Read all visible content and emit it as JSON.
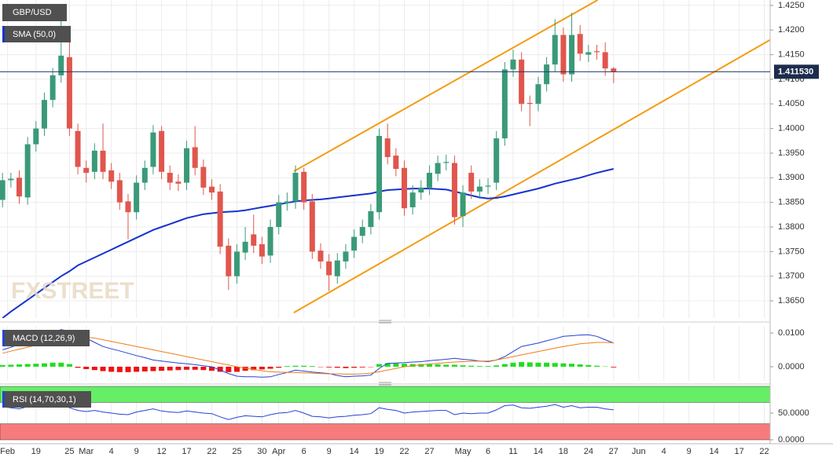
{
  "chart_data": [
    {
      "type": "candlestick",
      "title": "GBP/USD",
      "watermark": "FXSTREET",
      "up_color": "#3a9a78",
      "down_color": "#e0564d",
      "x": [
        0,
        1,
        2,
        3,
        4,
        5,
        6,
        7,
        8,
        9,
        10,
        11,
        12,
        13,
        14,
        15,
        16,
        17,
        18,
        19,
        20,
        21,
        22,
        23,
        24,
        25,
        26,
        27,
        28,
        29,
        30,
        31,
        32,
        33,
        34,
        35,
        36,
        37,
        38,
        39,
        40,
        41,
        42,
        43,
        44,
        45,
        46,
        47,
        48,
        49,
        50,
        51,
        52,
        53,
        54,
        55,
        56,
        57,
        58,
        59,
        60,
        61,
        62,
        63,
        64,
        65,
        66,
        67,
        68,
        69,
        70,
        71,
        72,
        73
      ],
      "open": [
        1.3855,
        1.3895,
        1.39,
        1.386,
        1.3968,
        1.4,
        1.4058,
        1.4108,
        1.4145,
        1.3995,
        1.392,
        1.3912,
        1.3955,
        1.3915,
        1.3895,
        1.3852,
        1.383,
        1.389,
        1.3922,
        1.3995,
        1.391,
        1.3892,
        1.389,
        1.3962,
        1.3922,
        1.3882,
        1.3872,
        1.3762,
        1.37,
        1.3748,
        1.3785,
        1.3765,
        1.3742,
        1.38,
        1.3848,
        1.3852,
        1.3912,
        1.3852,
        1.3752,
        1.373,
        1.37,
        1.373,
        1.3752,
        1.3782,
        1.38,
        1.383,
        1.398,
        1.3945,
        1.392,
        1.384,
        1.387,
        1.388,
        1.3908,
        1.393,
        1.393,
        1.3822,
        1.391,
        1.3872,
        1.3882,
        1.389,
        1.398,
        1.412,
        1.414,
        1.4052,
        1.405,
        1.409,
        1.413,
        1.419,
        1.411,
        1.4192,
        1.415,
        1.4157,
        1.4155,
        1.4122
      ],
      "high": [
        1.391,
        1.391,
        1.3915,
        1.3983,
        1.4015,
        1.4073,
        1.4123,
        1.424,
        1.418,
        1.401,
        1.3935,
        1.397,
        1.401,
        1.393,
        1.391,
        1.3867,
        1.3905,
        1.3935,
        1.4007,
        1.4005,
        1.3925,
        1.3907,
        1.3975,
        1.4005,
        1.3937,
        1.3897,
        1.3887,
        1.3777,
        1.3765,
        1.38,
        1.3825,
        1.378,
        1.3815,
        1.3865,
        1.387,
        1.3925,
        1.392,
        1.3867,
        1.3767,
        1.3745,
        1.3747,
        1.3765,
        1.3795,
        1.3815,
        1.3847,
        1.4,
        1.401,
        1.396,
        1.3935,
        1.3885,
        1.3895,
        1.3925,
        1.3945,
        1.3947,
        1.3945,
        1.3885,
        1.3925,
        1.3897,
        1.3899,
        1.3995,
        1.4135,
        1.416,
        1.4155,
        1.4067,
        1.4105,
        1.4145,
        1.4222,
        1.4205,
        1.4235,
        1.421,
        1.417,
        1.417,
        1.4175,
        1.4125
      ],
      "low": [
        1.384,
        1.388,
        1.3847,
        1.3845,
        1.3953,
        1.3985,
        1.4043,
        1.4093,
        1.3985,
        1.3907,
        1.389,
        1.3897,
        1.3897,
        1.3877,
        1.3835,
        1.3775,
        1.3815,
        1.3875,
        1.3907,
        1.3897,
        1.3875,
        1.3873,
        1.3875,
        1.3905,
        1.3865,
        1.3855,
        1.3745,
        1.3672,
        1.3685,
        1.3733,
        1.3747,
        1.3725,
        1.3727,
        1.3785,
        1.3833,
        1.3837,
        1.3835,
        1.3735,
        1.3715,
        1.367,
        1.3685,
        1.3715,
        1.3737,
        1.3767,
        1.3785,
        1.3815,
        1.3927,
        1.3903,
        1.3823,
        1.3825,
        1.3855,
        1.3865,
        1.3893,
        1.3915,
        1.3805,
        1.38,
        1.3857,
        1.3857,
        1.3867,
        1.3875,
        1.3965,
        1.4105,
        1.4035,
        1.4005,
        1.4035,
        1.4075,
        1.4115,
        1.4095,
        1.4095,
        1.4137,
        1.4135,
        1.414,
        1.4107,
        1.4092
      ],
      "close": [
        1.3895,
        1.3898,
        1.3862,
        1.3968,
        1.4,
        1.4058,
        1.4108,
        1.4148,
        1.4,
        1.3922,
        1.391,
        1.3955,
        1.3912,
        1.3892,
        1.385,
        1.383,
        1.389,
        1.392,
        1.3992,
        1.3912,
        1.389,
        1.3888,
        1.396,
        1.392,
        1.388,
        1.387,
        1.376,
        1.37,
        1.375,
        1.377,
        1.3762,
        1.374,
        1.38,
        1.385,
        1.3852,
        1.391,
        1.385,
        1.375,
        1.373,
        1.3702,
        1.3732,
        1.375,
        1.378,
        1.38,
        1.3832,
        1.3985,
        1.3942,
        1.3918,
        1.3838,
        1.387,
        1.388,
        1.391,
        1.393,
        1.3932,
        1.382,
        1.387,
        1.3872,
        1.3882,
        1.3884,
        1.398,
        1.412,
        1.414,
        1.405,
        1.405,
        1.409,
        1.413,
        1.419,
        1.411,
        1.419,
        1.4152,
        1.4155,
        1.4155,
        1.4122,
        1.4115
      ],
      "series": [
        {
          "name": "SMA (50,0)",
          "color": "#1533d0",
          "values": [
            1.3615,
            1.3628,
            1.364,
            1.3652,
            1.3664,
            1.3676,
            1.3688,
            1.37,
            1.371,
            1.3722,
            1.373,
            1.3738,
            1.3746,
            1.3754,
            1.3762,
            1.377,
            1.3778,
            1.3786,
            1.3794,
            1.38,
            1.3806,
            1.3812,
            1.3818,
            1.3822,
            1.3826,
            1.3828,
            1.383,
            1.3831,
            1.3832,
            1.3834,
            1.3837,
            1.384,
            1.3843,
            1.3846,
            1.3849,
            1.3852,
            1.3854,
            1.3855,
            1.3856,
            1.3858,
            1.386,
            1.3862,
            1.3864,
            1.3866,
            1.3868,
            1.3872,
            1.3875,
            1.3876,
            1.3877,
            1.3878,
            1.3878,
            1.3878,
            1.3877,
            1.3876,
            1.3872,
            1.3868,
            1.3864,
            1.386,
            1.3858,
            1.3859,
            1.3862,
            1.3866,
            1.387,
            1.3874,
            1.3878,
            1.3883,
            1.3888,
            1.3892,
            1.3896,
            1.39,
            1.3905,
            1.391,
            1.3914,
            1.3918
          ]
        }
      ],
      "trendlines": [
        {
          "color": "#f39c12",
          "x": [
            34.8,
            71.1
          ],
          "values": [
            1.3913,
            1.4261
          ]
        },
        {
          "color": "#f39c12",
          "x": [
            34.8,
            91.7
          ],
          "values": [
            1.3626,
            1.418
          ]
        }
      ],
      "last_price": {
        "value": 1.41153,
        "label": "1.411530"
      },
      "xlim": [
        -0.3,
        91.7
      ],
      "ylim": [
        1.3615,
        1.4261
      ],
      "xticks": [
        {
          "value": 0.6,
          "label": "Feb"
        },
        {
          "value": 4,
          "label": "19"
        },
        {
          "value": 8,
          "label": "25"
        },
        {
          "value": 10,
          "label": "Mar"
        },
        {
          "value": 13,
          "label": "4"
        },
        {
          "value": 16,
          "label": "9"
        },
        {
          "value": 19,
          "label": "12"
        },
        {
          "value": 22,
          "label": "17"
        },
        {
          "value": 25,
          "label": "22"
        },
        {
          "value": 28,
          "label": "25"
        },
        {
          "value": 31,
          "label": "30"
        },
        {
          "value": 33,
          "label": "Apr"
        },
        {
          "value": 36,
          "label": "6"
        },
        {
          "value": 39,
          "label": "9"
        },
        {
          "value": 42,
          "label": "14"
        },
        {
          "value": 45,
          "label": "19"
        },
        {
          "value": 48,
          "label": "22"
        },
        {
          "value": 51,
          "label": "27"
        },
        {
          "value": 55,
          "label": "May"
        },
        {
          "value": 58,
          "label": "6"
        },
        {
          "value": 61,
          "label": "11"
        },
        {
          "value": 64,
          "label": "14"
        },
        {
          "value": 67,
          "label": "18"
        },
        {
          "value": 70,
          "label": "24"
        },
        {
          "value": 73,
          "label": "27"
        },
        {
          "value": 76,
          "label": "Jun"
        },
        {
          "value": 79,
          "label": "4"
        },
        {
          "value": 82,
          "label": "9"
        },
        {
          "value": 85,
          "label": "14"
        },
        {
          "value": 88,
          "label": "17"
        },
        {
          "value": 91,
          "label": "22"
        }
      ],
      "yticks": [
        {
          "value": 1.365,
          "label": "1.3650"
        },
        {
          "value": 1.37,
          "label": "1.3700"
        },
        {
          "value": 1.375,
          "label": "1.3750"
        },
        {
          "value": 1.38,
          "label": "1.3800"
        },
        {
          "value": 1.385,
          "label": "1.3850"
        },
        {
          "value": 1.39,
          "label": "1.3900"
        },
        {
          "value": 1.395,
          "label": "1.3950"
        },
        {
          "value": 1.4,
          "label": "1.4000"
        },
        {
          "value": 1.405,
          "label": "1.4050"
        },
        {
          "value": 1.41,
          "label": "1.4100"
        },
        {
          "value": 1.415,
          "label": "1.4150"
        },
        {
          "value": 1.42,
          "label": "1.4200"
        },
        {
          "value": 1.425,
          "label": "1.4250"
        }
      ],
      "grid": true
    },
    {
      "type": "macd",
      "title": "MACD (12,26,9)",
      "series": [
        {
          "color": "#2442d6",
          "values": [
            0.005,
            0.0058,
            0.0066,
            0.0074,
            0.0082,
            0.009,
            0.01,
            0.011,
            0.0105,
            0.0095,
            0.0085,
            0.0072,
            0.006,
            0.0053,
            0.0047,
            0.004,
            0.0033,
            0.0027,
            0.002,
            0.0017,
            0.0014,
            0.0011,
            0.0009,
            0.0006,
            0.0003,
            0.0,
            -0.001,
            -0.002,
            -0.0028,
            -0.003,
            -0.003,
            -0.0031,
            -0.003,
            -0.0023,
            -0.0017,
            -0.001,
            -0.0013,
            -0.0016,
            -0.0018,
            -0.002,
            -0.0026,
            -0.003,
            -0.0028,
            -0.0027,
            -0.0025,
            -0.0005,
            0.001,
            0.0011,
            0.0012,
            0.0014,
            0.0015,
            0.0018,
            0.002,
            0.0022,
            0.0025,
            0.0022,
            0.002,
            0.0017,
            0.0015,
            0.002,
            0.003,
            0.0045,
            0.006,
            0.0065,
            0.007,
            0.0077,
            0.0083,
            0.009,
            0.0092,
            0.0094,
            0.0095,
            0.009,
            0.008,
            0.007
          ]
        },
        {
          "color": "#f07d1a",
          "values": [
            0.004,
            0.0046,
            0.0052,
            0.0058,
            0.0064,
            0.007,
            0.0076,
            0.0082,
            0.0087,
            0.009,
            0.0088,
            0.0085,
            0.008,
            0.0075,
            0.007,
            0.0065,
            0.006,
            0.0055,
            0.005,
            0.0045,
            0.004,
            0.0035,
            0.003,
            0.0025,
            0.002,
            0.0015,
            0.001,
            0.0005,
            0.0,
            -0.0004,
            -0.0008,
            -0.0012,
            -0.0015,
            -0.0016,
            -0.0017,
            -0.0017,
            -0.0018,
            -0.0019,
            -0.002,
            -0.0021,
            -0.0021,
            -0.0022,
            -0.0022,
            -0.0021,
            -0.0019,
            -0.0015,
            -0.001,
            -0.0005,
            0.0,
            0.0003,
            0.0006,
            0.0008,
            0.001,
            0.0012,
            0.0014,
            0.0015,
            0.0016,
            0.0017,
            0.0017,
            0.002,
            0.0025,
            0.003,
            0.0035,
            0.004,
            0.0045,
            0.005,
            0.0055,
            0.006,
            0.0064,
            0.0068,
            0.007,
            0.0072,
            0.0072,
            0.0071
          ]
        }
      ],
      "histogram": {
        "up_color": "#22dd22",
        "down_color": "#ee1111",
        "values": [
          0.0005,
          0.0006,
          0.0007,
          0.0008,
          0.0009,
          0.001,
          0.0012,
          0.0012,
          0.0008,
          -0.0003,
          -0.0007,
          -0.001,
          -0.0013,
          -0.0015,
          -0.0016,
          -0.0016,
          -0.0015,
          -0.0014,
          -0.0013,
          -0.0012,
          -0.0011,
          -0.001,
          -0.0009,
          -0.0009,
          -0.001,
          -0.0012,
          -0.0015,
          -0.0016,
          -0.0015,
          -0.0012,
          -0.001,
          -0.0008,
          -0.0006,
          -0.0003,
          0.0002,
          0.0003,
          0.0003,
          0.0002,
          -0.0001,
          -0.0002,
          -0.0003,
          -0.0004,
          -0.0003,
          -0.0002,
          -0.0001,
          0.0008,
          0.0011,
          0.001,
          0.0009,
          0.0008,
          0.0008,
          0.0007,
          0.0007,
          0.0006,
          0.0006,
          0.0004,
          0.0003,
          0.0002,
          0.0002,
          0.0004,
          0.0008,
          0.0012,
          0.0014,
          0.0013,
          0.0012,
          0.0012,
          0.0011,
          0.001,
          0.0009,
          0.0007,
          0.0005,
          0.0003,
          0.0001,
          -0.0002
        ]
      },
      "ylim": [
        -0.0042,
        0.0121
      ],
      "yticks": [
        {
          "value": 0,
          "label": "0.0000"
        },
        {
          "value": 0.01,
          "label": "0.0100"
        }
      ]
    },
    {
      "type": "rsi",
      "title": "RSI (14,70,30,1)",
      "color": "#2442d6",
      "values": [
        62,
        60,
        58,
        62,
        64,
        66,
        68,
        70,
        60,
        55,
        53,
        55,
        52,
        50,
        48,
        47,
        52,
        55,
        58,
        54,
        52,
        51,
        54,
        52,
        50,
        49,
        43,
        38,
        42,
        45,
        44,
        43,
        47,
        50,
        51,
        55,
        50,
        44,
        43,
        41,
        43,
        44,
        46,
        47,
        49,
        60,
        57,
        55,
        50,
        52,
        53,
        54,
        55,
        55,
        47,
        50,
        49,
        50,
        50,
        56,
        64,
        65,
        60,
        59,
        61,
        63,
        66,
        61,
        64,
        60,
        61,
        61,
        58,
        56
      ],
      "zones": [
        {
          "from": 70,
          "to": 100,
          "color": "#66ee66"
        },
        {
          "from": 0,
          "to": 30,
          "color": "#f77b7b"
        }
      ],
      "ylim": [
        0,
        100
      ],
      "yticks": [
        {
          "value": 0,
          "label": "0.0000"
        },
        {
          "value": 50,
          "label": "50.0000"
        }
      ]
    }
  ]
}
